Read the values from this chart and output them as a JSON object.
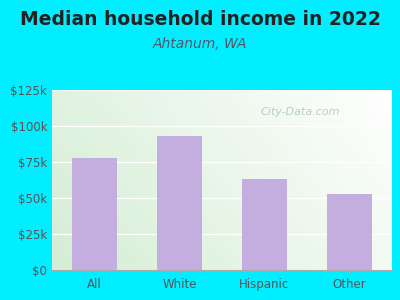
{
  "title": "Median household income in 2022",
  "subtitle": "Ahtanum, WA",
  "categories": [
    "All",
    "White",
    "Hispanic",
    "Other"
  ],
  "values": [
    78000,
    93000,
    63000,
    53000
  ],
  "bar_color": "#c4aee0",
  "background_outer": "#00eeff",
  "ylim": [
    0,
    125000
  ],
  "yticks": [
    0,
    25000,
    50000,
    75000,
    100000,
    125000
  ],
  "ytick_labels": [
    "$0",
    "$25k",
    "$50k",
    "$75k",
    "$100k",
    "$125k"
  ],
  "watermark": "City-Data.com",
  "title_fontsize": 13.5,
  "subtitle_fontsize": 10,
  "tick_fontsize": 8.5,
  "title_color": "#222222",
  "subtitle_color": "#555566",
  "tick_color": "#555555"
}
